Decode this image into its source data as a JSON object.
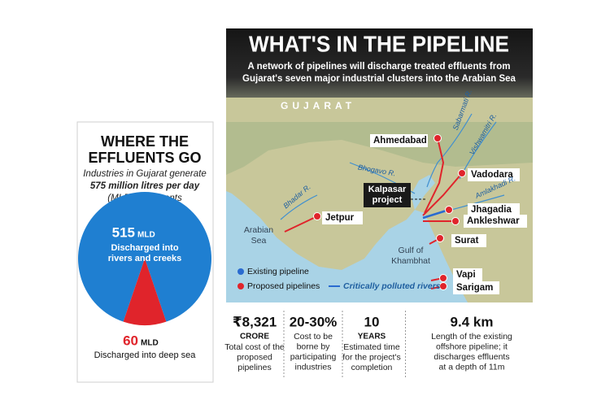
{
  "left_panel": {
    "title": [
      "WHERE THE",
      "EFFLUENTS GO"
    ],
    "intro": [
      "Industries in Gujarat generate",
      "575 million litres per day",
      "(MLD) of effluents"
    ],
    "pie": {
      "type": "pie",
      "unit": "MLD",
      "slices": [
        {
          "value": 515,
          "label": [
            "Discharged into",
            "rivers and creeks"
          ],
          "color": "#1f7fd1"
        },
        {
          "value": 60,
          "label": [
            "Discharged into deep sea"
          ],
          "color": "#e0242b"
        }
      ]
    }
  },
  "map": {
    "title": "WHAT'S IN THE PIPELINE",
    "subtitle": [
      "A network of pipelines will discharge treated effluents from",
      "Gujarat's seven major industrial clusters into the Arabian Sea"
    ],
    "region": "GUJARAT",
    "cities": [
      "Ahmedabad",
      "Vadodara",
      "Jhagadia",
      "Ankleshwar",
      "Surat",
      "Vapi",
      "Sarigam",
      "Jetpur"
    ],
    "rivers": [
      "Sabarmati R.",
      "Vishwamitri R.",
      "Bhogavo R.",
      "Amlakhadi R.",
      "Bhadar R."
    ],
    "seas": [
      [
        "Arabian",
        "Sea"
      ],
      [
        "Gulf of",
        "Khambhat"
      ]
    ],
    "project": [
      "Kalpasar",
      "project"
    ],
    "legend": [
      "Existing pipeline",
      "Proposed pipelines",
      "Critically polluted rivers"
    ]
  },
  "stats": [
    {
      "value": "₹8,321",
      "unit": "CRORE",
      "text": [
        "Total cost of the",
        "proposed",
        "pipelines"
      ]
    },
    {
      "value": "20-30%",
      "unit": null,
      "text": [
        "Cost to be",
        "borne by",
        "participating",
        "industries"
      ]
    },
    {
      "value": "10",
      "unit": "YEARS",
      "text": [
        "Estimated time",
        "for the project's",
        "completion"
      ]
    },
    {
      "value": "9.4 km",
      "unit": null,
      "text": [
        "Length of the existing",
        "offshore pipeline; it",
        "discharges effluents",
        "at a depth of 11m"
      ]
    }
  ]
}
